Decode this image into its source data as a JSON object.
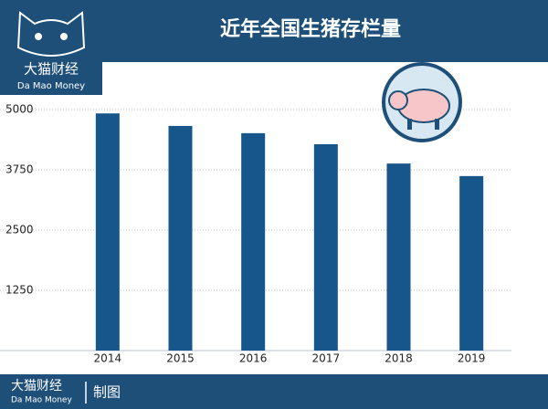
{
  "brand": {
    "name": "大猫财经",
    "english": "Da Mao Money"
  },
  "footer": {
    "name": "大猫财经",
    "english": "Da Mao Money",
    "caption": "制图"
  },
  "chart_data": {
    "type": "bar",
    "title": "近年全国生猪存栏量",
    "categories": [
      "2014",
      "2015",
      "2016",
      "2017",
      "2018",
      "2019"
    ],
    "values": [
      4920,
      4660,
      4510,
      4280,
      3880,
      3620
    ],
    "color": "#17568a",
    "ylim": [
      0,
      5000
    ],
    "yticks": [
      1250,
      2500,
      3750,
      5000
    ],
    "grid": true
  }
}
